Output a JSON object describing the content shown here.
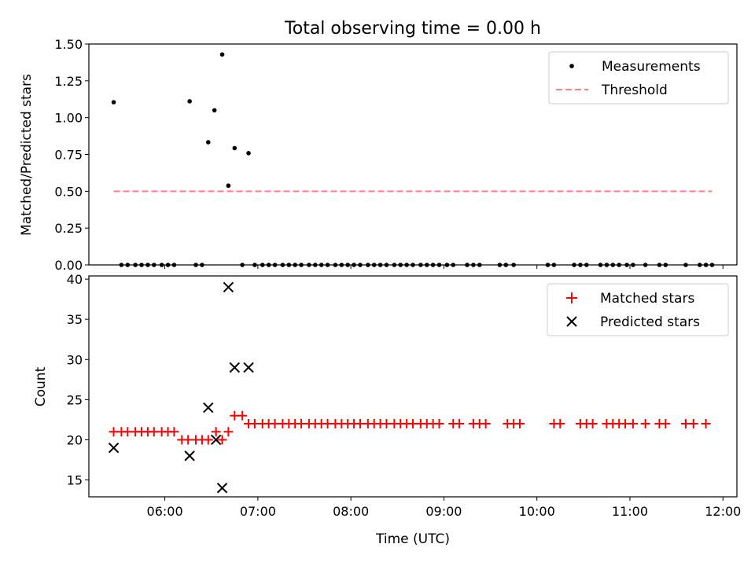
{
  "figure": {
    "title": "Total observing time = 0.00 h"
  },
  "chart_data": [
    {
      "type": "scatter",
      "ylabel": "Matched/Predicted stars",
      "xlabel": "",
      "x_unit": "time (UTC, HH:MM)",
      "xlim": [
        "05:11",
        "12:09"
      ],
      "ylim": [
        0,
        1.5
      ],
      "yticks": [
        "0.00",
        "0.25",
        "0.50",
        "0.75",
        "1.00",
        "1.25",
        "1.50"
      ],
      "xticks": [
        "06:00",
        "07:00",
        "08:00",
        "09:00",
        "10:00",
        "11:00",
        "12:00"
      ],
      "show_xtick_labels": false,
      "grid": false,
      "legend_position": "top-right",
      "series": [
        {
          "name": "Measurements",
          "color": "#000000",
          "marker": "dot",
          "points": [
            [
              "05:27",
              1.105
            ],
            [
              "06:16",
              1.111
            ],
            [
              "06:28",
              0.833
            ],
            [
              "06:32",
              1.05
            ],
            [
              "06:37",
              1.429
            ],
            [
              "06:41",
              0.538
            ],
            [
              "06:45",
              0.793
            ],
            [
              "06:54",
              0.759
            ],
            [
              "05:32",
              0
            ],
            [
              "05:36",
              0
            ],
            [
              "05:41",
              0
            ],
            [
              "05:45",
              0
            ],
            [
              "05:49",
              0
            ],
            [
              "05:53",
              0
            ],
            [
              "05:58",
              0
            ],
            [
              "06:02",
              0
            ],
            [
              "06:06",
              0
            ],
            [
              "06:20",
              0
            ],
            [
              "06:24",
              0
            ],
            [
              "06:50",
              0
            ],
            [
              "06:58",
              0
            ],
            [
              "07:03",
              0
            ],
            [
              "07:07",
              0
            ],
            [
              "07:11",
              0
            ],
            [
              "07:16",
              0
            ],
            [
              "07:20",
              0
            ],
            [
              "07:24",
              0
            ],
            [
              "07:28",
              0
            ],
            [
              "07:33",
              0
            ],
            [
              "07:37",
              0
            ],
            [
              "07:41",
              0
            ],
            [
              "07:45",
              0
            ],
            [
              "07:50",
              0
            ],
            [
              "07:54",
              0
            ],
            [
              "07:58",
              0
            ],
            [
              "08:02",
              0
            ],
            [
              "08:06",
              0
            ],
            [
              "08:11",
              0
            ],
            [
              "08:15",
              0
            ],
            [
              "08:19",
              0
            ],
            [
              "08:23",
              0
            ],
            [
              "08:28",
              0
            ],
            [
              "08:32",
              0
            ],
            [
              "08:36",
              0
            ],
            [
              "08:40",
              0
            ],
            [
              "08:45",
              0
            ],
            [
              "08:49",
              0
            ],
            [
              "08:53",
              0
            ],
            [
              "08:57",
              0
            ],
            [
              "09:02",
              0
            ],
            [
              "09:06",
              0
            ],
            [
              "09:15",
              0
            ],
            [
              "09:19",
              0
            ],
            [
              "09:23",
              0
            ],
            [
              "09:36",
              0
            ],
            [
              "09:40",
              0
            ],
            [
              "09:45",
              0
            ],
            [
              "10:07",
              0
            ],
            [
              "10:11",
              0
            ],
            [
              "10:24",
              0
            ],
            [
              "10:28",
              0
            ],
            [
              "10:32",
              0
            ],
            [
              "10:41",
              0
            ],
            [
              "10:45",
              0
            ],
            [
              "10:49",
              0
            ],
            [
              "10:53",
              0
            ],
            [
              "10:58",
              0
            ],
            [
              "11:02",
              0
            ],
            [
              "11:10",
              0
            ],
            [
              "11:19",
              0
            ],
            [
              "11:23",
              0
            ],
            [
              "11:36",
              0
            ],
            [
              "11:45",
              0
            ],
            [
              "11:49",
              0
            ],
            [
              "11:53",
              0
            ]
          ]
        },
        {
          "name": "Threshold",
          "color": "#ff7f7f",
          "style": "dashed",
          "points": [
            [
              "05:27",
              0.5
            ],
            [
              "11:53",
              0.5
            ]
          ]
        }
      ]
    },
    {
      "type": "scatter",
      "ylabel": "Count",
      "xlabel": "Time (UTC)",
      "x_unit": "time (UTC, HH:MM)",
      "xlim": [
        "05:11",
        "12:09"
      ],
      "ylim": [
        12.9,
        40.4
      ],
      "yticks": [
        "15",
        "20",
        "25",
        "30",
        "35",
        "40"
      ],
      "xticks": [
        "06:00",
        "07:00",
        "08:00",
        "09:00",
        "10:00",
        "11:00",
        "12:00"
      ],
      "grid": false,
      "legend_position": "top-right",
      "series": [
        {
          "name": "Matched stars",
          "color": "#ff0000",
          "marker": "plus",
          "points": [
            [
              "05:27",
              21
            ],
            [
              "05:32",
              21
            ],
            [
              "05:36",
              21
            ],
            [
              "05:41",
              21
            ],
            [
              "05:45",
              21
            ],
            [
              "05:49",
              21
            ],
            [
              "05:53",
              21
            ],
            [
              "05:58",
              21
            ],
            [
              "06:02",
              21
            ],
            [
              "06:06",
              21
            ],
            [
              "06:11",
              20
            ],
            [
              "06:15",
              20
            ],
            [
              "06:20",
              20
            ],
            [
              "06:24",
              20
            ],
            [
              "06:28",
              20
            ],
            [
              "06:33",
              21
            ],
            [
              "06:37",
              20
            ],
            [
              "06:41",
              21
            ],
            [
              "06:45",
              23
            ],
            [
              "06:50",
              23
            ],
            [
              "06:54",
              22
            ],
            [
              "06:58",
              22
            ],
            [
              "07:03",
              22
            ],
            [
              "07:07",
              22
            ],
            [
              "07:11",
              22
            ],
            [
              "07:16",
              22
            ],
            [
              "07:20",
              22
            ],
            [
              "07:24",
              22
            ],
            [
              "07:28",
              22
            ],
            [
              "07:33",
              22
            ],
            [
              "07:37",
              22
            ],
            [
              "07:41",
              22
            ],
            [
              "07:45",
              22
            ],
            [
              "07:50",
              22
            ],
            [
              "07:54",
              22
            ],
            [
              "07:58",
              22
            ],
            [
              "08:02",
              22
            ],
            [
              "08:06",
              22
            ],
            [
              "08:11",
              22
            ],
            [
              "08:15",
              22
            ],
            [
              "08:19",
              22
            ],
            [
              "08:23",
              22
            ],
            [
              "08:28",
              22
            ],
            [
              "08:32",
              22
            ],
            [
              "08:36",
              22
            ],
            [
              "08:40",
              22
            ],
            [
              "08:45",
              22
            ],
            [
              "08:49",
              22
            ],
            [
              "08:53",
              22
            ],
            [
              "08:57",
              22
            ],
            [
              "09:06",
              22
            ],
            [
              "09:10",
              22
            ],
            [
              "09:19",
              22
            ],
            [
              "09:23",
              22
            ],
            [
              "09:27",
              22
            ],
            [
              "09:41",
              22
            ],
            [
              "09:45",
              22
            ],
            [
              "09:49",
              22
            ],
            [
              "10:11",
              22
            ],
            [
              "10:15",
              22
            ],
            [
              "10:28",
              22
            ],
            [
              "10:32",
              22
            ],
            [
              "10:36",
              22
            ],
            [
              "10:45",
              22
            ],
            [
              "10:49",
              22
            ],
            [
              "10:53",
              22
            ],
            [
              "10:57",
              22
            ],
            [
              "11:02",
              22
            ],
            [
              "11:10",
              22
            ],
            [
              "11:19",
              22
            ],
            [
              "11:23",
              22
            ],
            [
              "11:36",
              22
            ],
            [
              "11:41",
              22
            ],
            [
              "11:49",
              22
            ]
          ]
        },
        {
          "name": "Predicted stars",
          "color": "#000000",
          "marker": "x",
          "points": [
            [
              "05:27",
              19
            ],
            [
              "06:16",
              18
            ],
            [
              "06:28",
              24
            ],
            [
              "06:33",
              20
            ],
            [
              "06:37",
              14
            ],
            [
              "06:41",
              39
            ],
            [
              "06:45",
              29
            ],
            [
              "06:54",
              29
            ]
          ]
        }
      ]
    }
  ]
}
